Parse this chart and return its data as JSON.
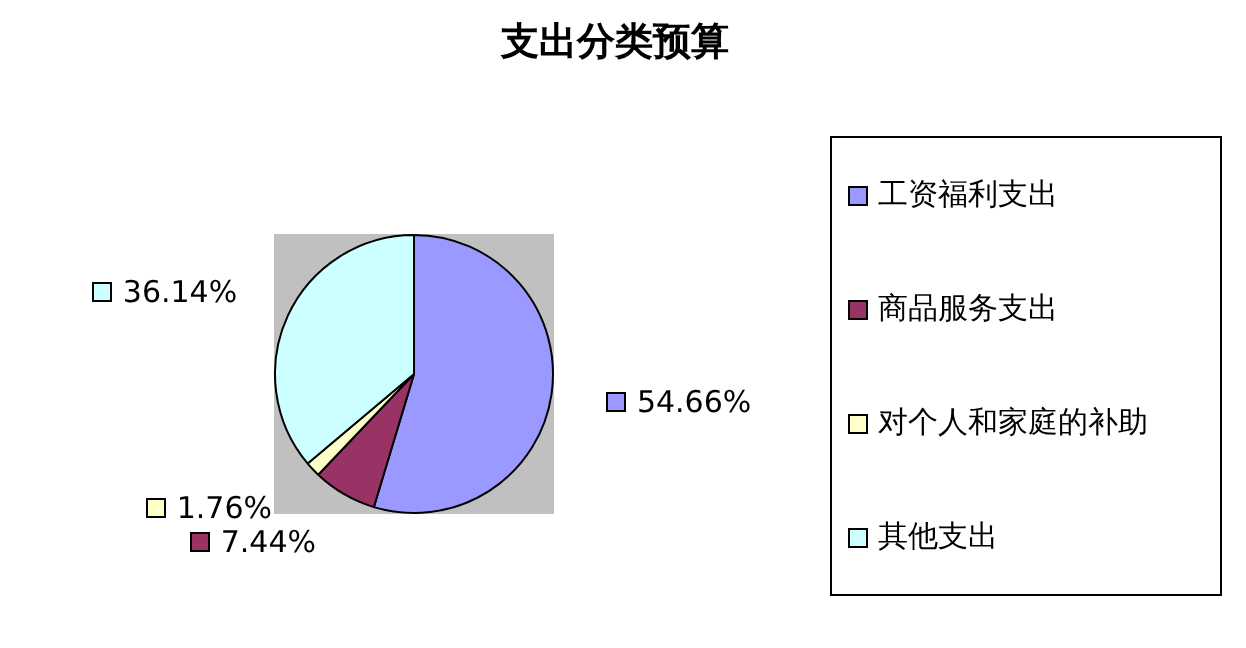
{
  "chart_data": {
    "type": "pie",
    "title": "支出分类预算",
    "categories": [
      "工资福利支出",
      "商品服务支出",
      "对个人和家庭的补助",
      "其他支出"
    ],
    "values": [
      54.66,
      7.44,
      1.76,
      36.14
    ],
    "colors": [
      "#9999ff",
      "#993366",
      "#ffffcc",
      "#ccffff"
    ],
    "value_labels": [
      "54.66%",
      "7.44%",
      "1.76%",
      "36.14%"
    ],
    "legend": "right"
  }
}
